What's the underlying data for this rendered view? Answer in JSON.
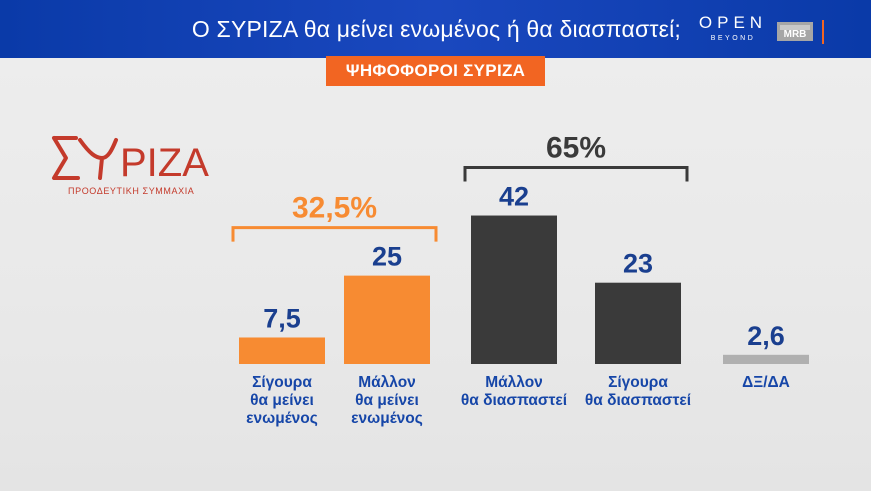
{
  "header": {
    "title": "Ο ΣΥΡΙΖΑ θα μείνει ενωμένος ή θα διασπαστεί;",
    "channel_logo": "OPEN",
    "channel_logo_sub": "BEYOND",
    "pollster_logo": "MRB"
  },
  "subtitle": "ΨΗΦΟΦΟΡΟΙ ΣΥΡΙΖΑ",
  "party_logo": {
    "name": "ΣΥΡΙΖΑ",
    "tagline": "ΠΡΟΟΔΕΥΤΙΚΗ ΣΥΜΜΑΧΙΑ"
  },
  "colors": {
    "header_blue": "#0a3aa8",
    "orange": "#f78b32",
    "subtitle_orange": "#f26522",
    "dark_gray": "#3a3a3a",
    "light_gray": "#b0b0b0",
    "label_blue": "#1646a8",
    "party_red": "#c43a2b"
  },
  "chart_data": {
    "type": "bar",
    "categories": [
      "Σίγουρα\nθα μείνει\nενωμένος",
      "Μάλλον\nθα μείνει\nενωμένος",
      "Μάλλον\nθα διασπαστεί",
      "Σίγουρα\nθα διασπαστεί",
      "ΔΞ/ΔΑ"
    ],
    "values": [
      7.5,
      25,
      42,
      23,
      2.6
    ],
    "value_labels": [
      "7,5",
      "25",
      "42",
      "23",
      "2,6"
    ],
    "bar_colors": [
      "#f78b32",
      "#f78b32",
      "#3a3a3a",
      "#3a3a3a",
      "#b0b0b0"
    ],
    "groups": [
      {
        "label": "32,5%",
        "from": 0,
        "to": 1,
        "color": "#f78b32"
      },
      {
        "label": "65%",
        "from": 2,
        "to": 3,
        "color": "#3a3a3a"
      }
    ],
    "title": "",
    "xlabel": "",
    "ylabel": "",
    "ylim": [
      0,
      42
    ]
  }
}
